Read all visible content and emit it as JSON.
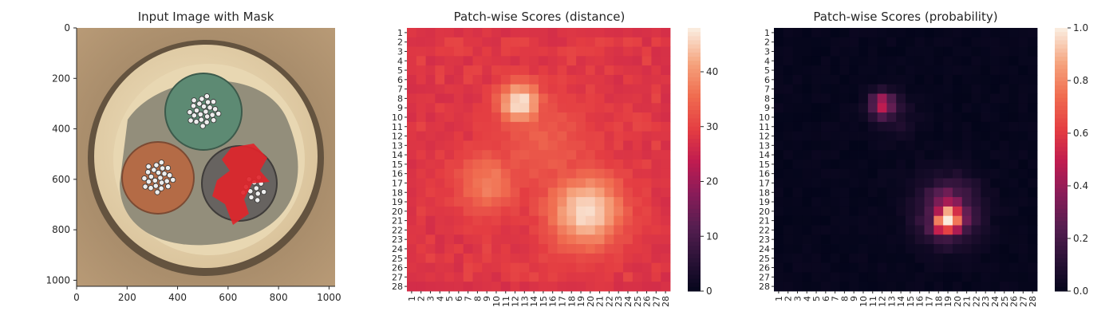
{
  "chart_data": [
    {
      "type": "image",
      "title": "Input Image with Mask",
      "xlim": [
        0,
        1024
      ],
      "ylim": [
        1024,
        0
      ],
      "x_ticks": [
        "0",
        "200",
        "400",
        "600",
        "800",
        "1000"
      ],
      "y_ticks": [
        "0",
        "200",
        "400",
        "600",
        "800",
        "1000"
      ],
      "colors": {
        "background": "#b89a76",
        "ring": "#e6d3ad",
        "well": "#8e8a78",
        "green_cable": "#5d8a73",
        "orange_cable": "#b46b46",
        "grey_cable": "#676360",
        "mask": "#e0252b"
      }
    },
    {
      "type": "heatmap",
      "title": "Patch-wise Scores (distance)",
      "x_labels": [
        "1",
        "2",
        "3",
        "4",
        "5",
        "6",
        "7",
        "8",
        "9",
        "10",
        "11",
        "12",
        "13",
        "14",
        "15",
        "16",
        "17",
        "18",
        "19",
        "20",
        "21",
        "22",
        "23",
        "24",
        "25",
        "26",
        "27",
        "28"
      ],
      "y_labels": [
        "1",
        "2",
        "3",
        "4",
        "5",
        "6",
        "7",
        "8",
        "9",
        "10",
        "11",
        "12",
        "13",
        "14",
        "15",
        "16",
        "17",
        "18",
        "19",
        "20",
        "21",
        "22",
        "23",
        "24",
        "25",
        "26",
        "27",
        "28"
      ],
      "colorbar": {
        "min": 0,
        "max": 48,
        "ticks": [
          "0",
          "10",
          "20",
          "30",
          "40"
        ]
      },
      "colormap": "rocket",
      "baseline": 28,
      "hotspots": [
        {
          "x": 12.5,
          "y": 8.5,
          "peak": 48,
          "spread": 1.6
        },
        {
          "x": 19.5,
          "y": 20.0,
          "peak": 47,
          "spread": 2.8
        },
        {
          "x": 9.0,
          "y": 17.0,
          "peak": 38,
          "spread": 2.4
        },
        {
          "x": 15.0,
          "y": 13.0,
          "peak": 34,
          "spread": 4.0
        }
      ]
    },
    {
      "type": "heatmap",
      "title": "Patch-wise Scores (probability)",
      "x_labels": [
        "1",
        "2",
        "3",
        "4",
        "5",
        "6",
        "7",
        "8",
        "9",
        "10",
        "11",
        "12",
        "13",
        "14",
        "15",
        "16",
        "17",
        "18",
        "19",
        "20",
        "21",
        "22",
        "23",
        "24",
        "25",
        "26",
        "27",
        "28"
      ],
      "y_labels": [
        "1",
        "2",
        "3",
        "4",
        "5",
        "6",
        "7",
        "8",
        "9",
        "10",
        "11",
        "12",
        "13",
        "14",
        "15",
        "16",
        "17",
        "18",
        "19",
        "20",
        "21",
        "22",
        "23",
        "24",
        "25",
        "26",
        "27",
        "28"
      ],
      "colorbar": {
        "min": 0.0,
        "max": 1.0,
        "ticks": [
          "0.0",
          "0.2",
          "0.4",
          "0.6",
          "0.8",
          "1.0"
        ]
      },
      "colormap": "rocket",
      "baseline": 0.0,
      "hotspots": [
        {
          "x": 19.0,
          "y": 21.0,
          "peak": 0.72,
          "spread": 0.9
        },
        {
          "x": 19.0,
          "y": 20.0,
          "peak": 0.35,
          "spread": 2.2
        },
        {
          "x": 12.0,
          "y": 8.6,
          "peak": 0.42,
          "spread": 0.9
        },
        {
          "x": 13.5,
          "y": 10.0,
          "peak": 0.08,
          "spread": 1.5
        }
      ]
    }
  ]
}
